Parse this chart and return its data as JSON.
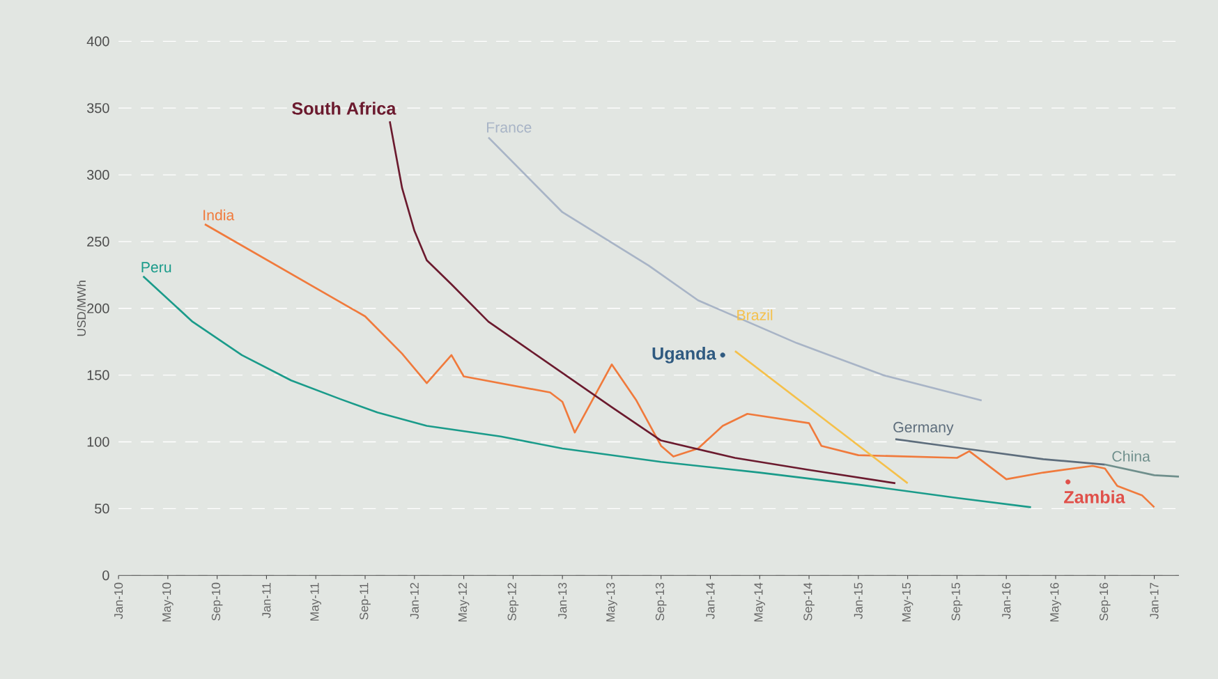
{
  "chart_data": {
    "type": "line",
    "ylabel": "USD/MWh",
    "xlim": [
      "2010-01",
      "2017-03"
    ],
    "ylim": [
      0,
      400
    ],
    "xticks": [
      {
        "value": "2010-01",
        "label": "Jan-10"
      },
      {
        "value": "2010-05",
        "label": "May-10"
      },
      {
        "value": "2010-09",
        "label": "Sep-10"
      },
      {
        "value": "2011-01",
        "label": "Jan-11"
      },
      {
        "value": "2011-05",
        "label": "May-11"
      },
      {
        "value": "2011-09",
        "label": "Sep-11"
      },
      {
        "value": "2012-01",
        "label": "Jan-12"
      },
      {
        "value": "2012-05",
        "label": "May-12"
      },
      {
        "value": "2012-09",
        "label": "Sep-12"
      },
      {
        "value": "2013-01",
        "label": "Jan-13"
      },
      {
        "value": "2013-05",
        "label": "May-13"
      },
      {
        "value": "2013-09",
        "label": "Sep-13"
      },
      {
        "value": "2014-01",
        "label": "Jan-14"
      },
      {
        "value": "2014-05",
        "label": "May-14"
      },
      {
        "value": "2014-09",
        "label": "Sep-14"
      },
      {
        "value": "2015-01",
        "label": "Jan-15"
      },
      {
        "value": "2015-05",
        "label": "May-15"
      },
      {
        "value": "2015-09",
        "label": "Sep-15"
      },
      {
        "value": "2016-01",
        "label": "Jan-16"
      },
      {
        "value": "2016-05",
        "label": "May-16"
      },
      {
        "value": "2016-09",
        "label": "Sep-16"
      },
      {
        "value": "2017-01",
        "label": "Jan-17"
      }
    ],
    "yticks": [
      0,
      50,
      100,
      150,
      200,
      250,
      300,
      350,
      400
    ],
    "grid": "y",
    "legend": false,
    "marker": "none",
    "line_style": "solid",
    "series": [
      {
        "name": "Peru",
        "color": "#1a9b8a",
        "x": [
          "2010-03",
          "2010-07",
          "2010-11",
          "2011-03",
          "2011-07",
          "2011-10",
          "2012-02",
          "2012-08",
          "2013-01",
          "2013-09",
          "2014-05",
          "2015-01",
          "2015-09",
          "2016-03"
        ],
        "values": [
          224,
          190,
          165,
          146,
          132,
          122,
          112,
          104,
          95,
          85,
          77,
          68,
          58,
          51
        ]
      },
      {
        "name": "India",
        "color": "#f07a3c",
        "x": [
          "2010-08",
          "2011-09",
          "2011-12",
          "2012-02",
          "2012-04",
          "2012-05",
          "2012-12",
          "2013-01",
          "2013-02",
          "2013-05",
          "2013-07",
          "2013-09",
          "2013-10",
          "2013-12",
          "2014-02",
          "2014-04",
          "2014-09",
          "2014-10",
          "2015-01",
          "2015-09",
          "2015-10",
          "2016-01",
          "2016-04",
          "2016-08",
          "2016-09",
          "2016-10",
          "2016-12",
          "2017-01"
        ],
        "values": [
          263,
          194,
          166,
          144,
          165,
          149,
          137,
          130,
          107,
          158,
          131,
          97,
          89,
          95,
          112,
          121,
          114,
          97,
          90,
          88,
          93,
          72,
          77,
          82,
          80,
          67,
          60,
          51
        ]
      },
      {
        "name": "South Africa",
        "color": "#6b1a2e",
        "x": [
          "2011-11",
          "2011-12",
          "2012-01",
          "2012-02",
          "2012-04",
          "2012-07",
          "2012-12",
          "2013-05",
          "2013-09",
          "2014-03",
          "2014-09",
          "2015-04"
        ],
        "values": [
          340,
          290,
          258,
          236,
          218,
          190,
          158,
          126,
          101,
          88,
          79,
          69
        ]
      },
      {
        "name": "France",
        "color": "#a8b4c6",
        "x": [
          "2012-07",
          "2013-01",
          "2013-08",
          "2013-12",
          "2014-08",
          "2015-03",
          "2015-11"
        ],
        "values": [
          328,
          272,
          232,
          206,
          174,
          150,
          131
        ]
      },
      {
        "name": "Brazil",
        "color": "#f5c04a",
        "x": [
          "2014-03",
          "2015-05"
        ],
        "values": [
          168,
          69
        ]
      },
      {
        "name": "Uganda",
        "color": "#2f5a80",
        "type": "scatter",
        "x": [
          "2014-02"
        ],
        "values": [
          165
        ]
      },
      {
        "name": "Germany",
        "color": "#5d6d7c",
        "x": [
          "2015-04",
          "2015-08",
          "2016-04",
          "2016-09"
        ],
        "values": [
          102,
          97,
          87,
          83
        ]
      },
      {
        "name": "China",
        "color": "#6f8f8c",
        "x": [
          "2016-09",
          "2017-01",
          "2017-03"
        ],
        "values": [
          83,
          75,
          74
        ]
      },
      {
        "name": "Zambia",
        "color": "#e0504a",
        "type": "scatter",
        "x": [
          "2016-06"
        ],
        "values": [
          70
        ]
      }
    ]
  }
}
